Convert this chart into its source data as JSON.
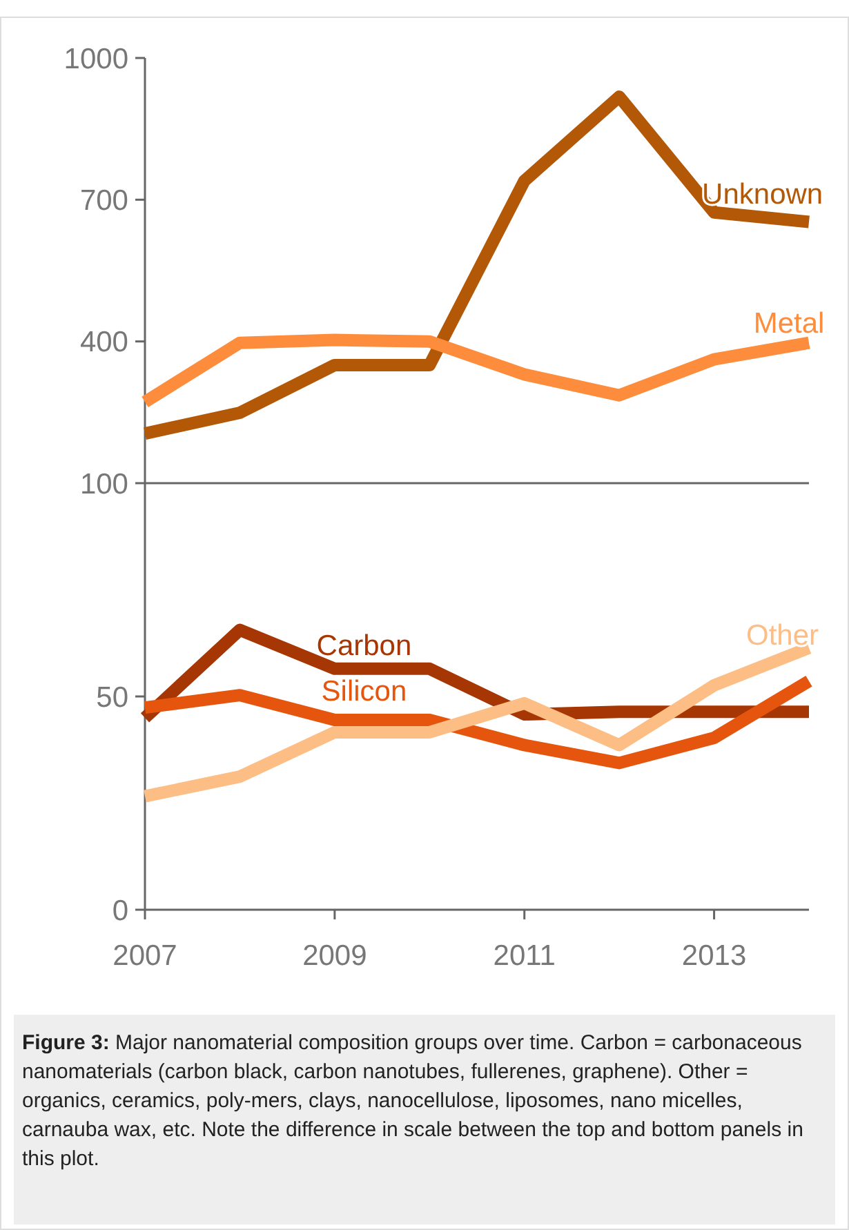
{
  "chart_data": [
    {
      "type": "line",
      "x": [
        2007,
        2008,
        2009,
        2010,
        2011,
        2012,
        2013,
        2014
      ],
      "xlim": [
        2007,
        2014
      ],
      "ylim": [
        100,
        1000
      ],
      "yticks": [
        100,
        400,
        700,
        1000
      ],
      "tick_labels": "y",
      "series": [
        {
          "name": "Unknown",
          "color": "#b35806",
          "values": [
            205,
            249,
            350,
            350,
            740,
            918,
            673,
            653
          ]
        },
        {
          "name": "Metal",
          "color": "#fd8d3c",
          "values": [
            272,
            397,
            403,
            400,
            330,
            286,
            362,
            397
          ]
        }
      ]
    },
    {
      "type": "line",
      "x": [
        2007,
        2008,
        2009,
        2010,
        2011,
        2012,
        2013,
        2014
      ],
      "xlim": [
        2007,
        2014
      ],
      "ylim": [
        0,
        100
      ],
      "yticks": [
        0,
        50
      ],
      "xticks": [
        2007,
        2009,
        2011,
        2013
      ],
      "series": [
        {
          "name": "Carbon",
          "color": "#a63603",
          "values": [
            45,
            65.6,
            56.5,
            56.5,
            45.8,
            46.4,
            46.4,
            46.4
          ]
        },
        {
          "name": "Silicon",
          "color": "#e6550d",
          "values": [
            47.4,
            50.3,
            44.5,
            44.5,
            38.6,
            34.4,
            40.3,
            53.6
          ]
        },
        {
          "name": "Other",
          "color": "#fdbe85",
          "values": [
            26.6,
            31.2,
            41.6,
            41.6,
            48.4,
            38.6,
            52.6,
            61.4
          ]
        }
      ],
      "annotations": [
        "Figure 3: Major nanomaterial composition groups over time. Carbon = carbonaceous nanomaterials (carbon black, carbon nanotubes, fullerenes, graphene). Other = organics, ceramics, poly-mers, clays, nanocellulose, liposomes, nano micelles, carnauba wax, etc. Note the difference in scale between the top and bottom panels in this plot."
      ]
    }
  ]
}
